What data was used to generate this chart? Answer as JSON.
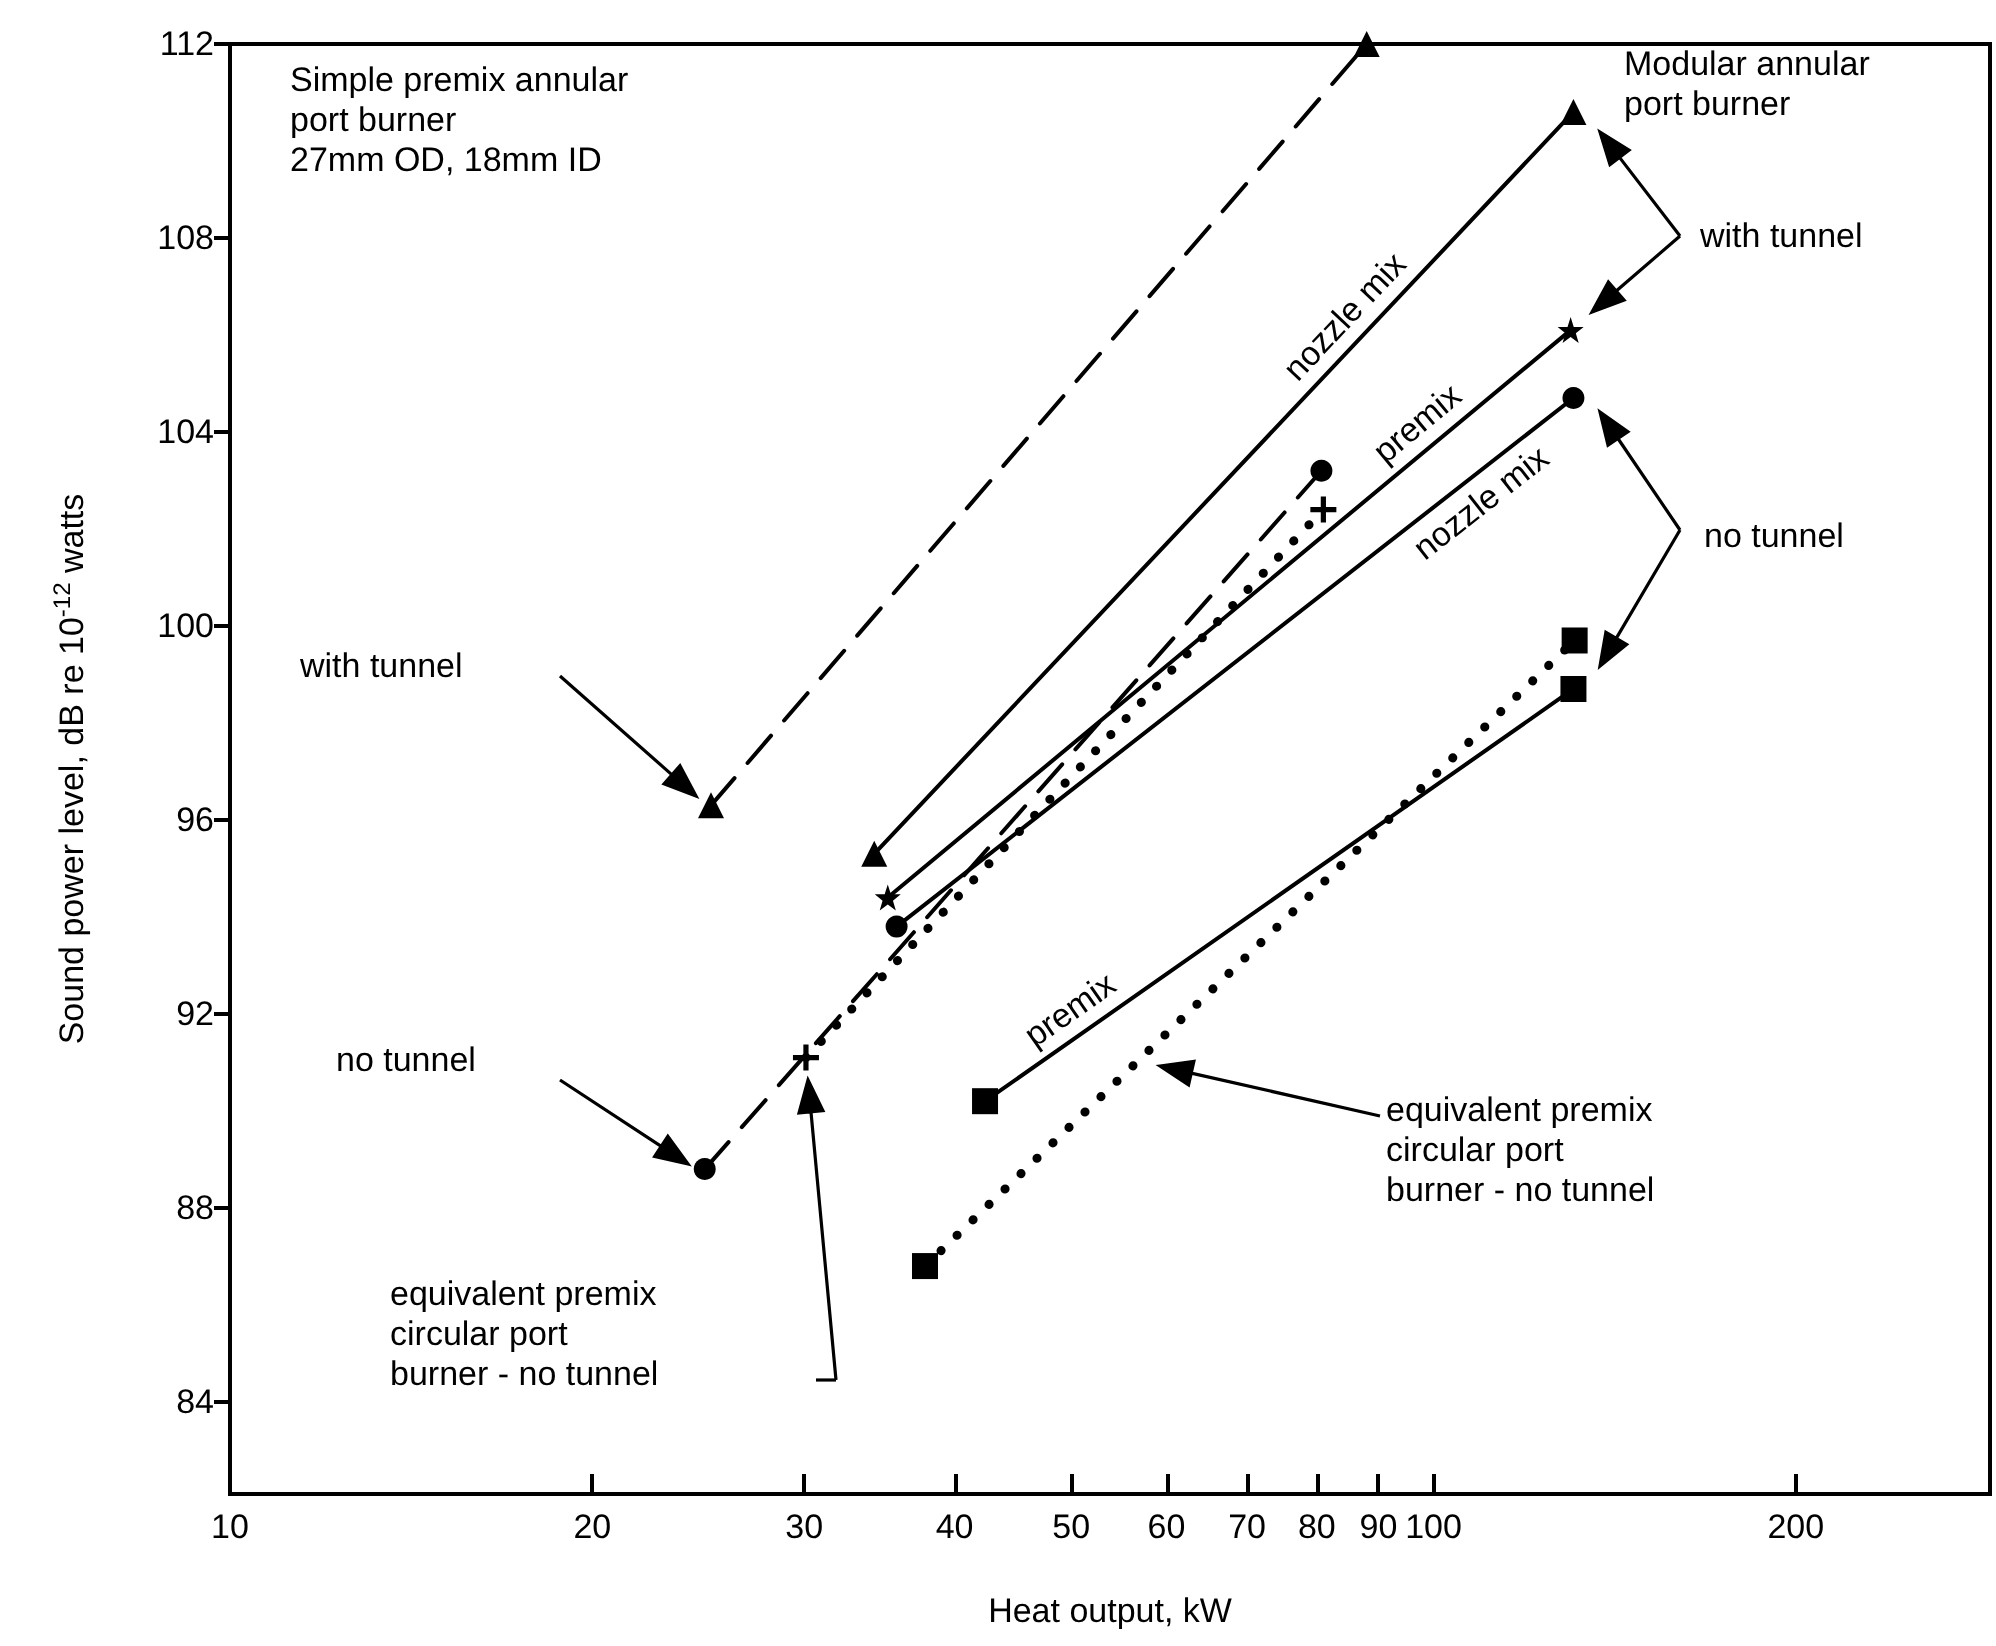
{
  "chart_data": {
    "type": "line",
    "xlabel": "Heat output, kW",
    "ylabel": "Sound power level, dB re 10$^{-12}$ watts",
    "log": "x",
    "xlim": [
      10,
      290
    ],
    "xticks": [
      10,
      20,
      30,
      40,
      50,
      60,
      70,
      80,
      90,
      100,
      200
    ],
    "ylim": [
      82.1,
      112
    ],
    "yticks": [
      84,
      88,
      92,
      96,
      100,
      104,
      108,
      112
    ],
    "grid": false,
    "legend": false,
    "series": [
      {
        "color": "#000000",
        "x": [
          25.1,
          88
        ],
        "values": [
          96.3,
          112
        ],
        "line_style": "dashed",
        "marker": "triangle"
      },
      {
        "color": "#000000",
        "x": [
          24.8,
          80.7
        ],
        "values": [
          88.8,
          103.2
        ],
        "line_style": "dashed",
        "marker": "circle"
      },
      {
        "color": "#000000",
        "x": [
          30.1,
          81
        ],
        "values": [
          91.1,
          102.4
        ],
        "line_style": "dotted",
        "marker": "cross"
      },
      {
        "name": "nozzle mix",
        "color": "#000000",
        "x": [
          34.3,
          130.7
        ],
        "values": [
          95.3,
          110.6
        ],
        "line_style": "solid",
        "marker": "triangle"
      },
      {
        "name": "premix",
        "color": "#000000",
        "x": [
          35.2,
          130
        ],
        "values": [
          94.4,
          106.1
        ],
        "line_style": "solid",
        "marker": "star"
      },
      {
        "name": "nozzle mix",
        "color": "#000000",
        "x": [
          35.8,
          130.7
        ],
        "values": [
          93.8,
          104.7
        ],
        "line_style": "solid",
        "marker": "circle"
      },
      {
        "name": "premix",
        "color": "#000000",
        "x": [
          42.4,
          130.7
        ],
        "values": [
          90.2,
          98.7
        ],
        "line_style": "solid",
        "marker": "square"
      },
      {
        "color": "#000000",
        "x": [
          37.8,
          131
        ],
        "values": [
          86.8,
          99.7
        ],
        "line_style": "dotted",
        "marker": "square"
      }
    ],
    "annotations": [
      "Simple premix annular\nport burner\n27mm OD, 18mm ID",
      "Modular annular\nport burner",
      "with tunnel",
      "no tunnel",
      "with tunnel",
      "no tunnel",
      "equivalent premix\ncircular port\nburner - no tunnel",
      "equivalent premix\ncircular port\nburner - no tunnel"
    ]
  }
}
